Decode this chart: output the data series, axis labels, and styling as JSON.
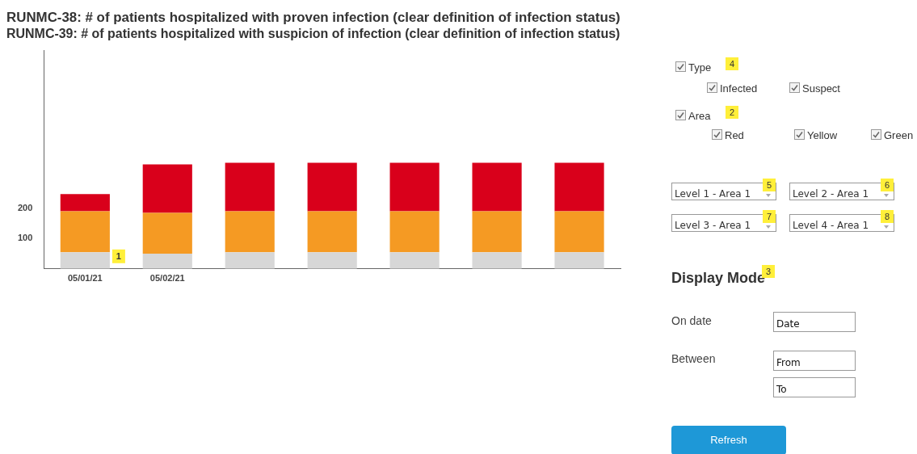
{
  "chart_data": [
    {
      "type": "bar",
      "title": "RUNMC-38: # of patients hospitalized with proven infection (clear definition of infection status)",
      "subtitle": "RUNMC-39: # of patients hospitalized with suspicion of infection (clear definition of infection status)",
      "categories": [
        "05/01/21",
        "05/02/21",
        null,
        null,
        null,
        null,
        null
      ],
      "series": [
        {
          "color": "#d7d7d7",
          "values": [
            55,
            50,
            55,
            55,
            55,
            55,
            55
          ]
        },
        {
          "color": "#f59a23",
          "values": [
            135,
            135,
            135,
            135,
            135,
            135,
            135
          ]
        },
        {
          "color": "#d9001b",
          "values": [
            57,
            160,
            160,
            160,
            160,
            160,
            160
          ]
        }
      ],
      "stacked": true,
      "ylim": [
        0,
        720
      ],
      "yticks": [
        100,
        200
      ],
      "grid": false,
      "legend": false,
      "annotations": [
        "1"
      ]
    },
    {
      "type": "other",
      "annotations": [
        "Type",
        "4",
        "Infected",
        "Suspect",
        "Area",
        "2",
        "Red",
        "Yellow",
        "Green",
        "Level 1 - Area 1",
        "5",
        "Level 2 - Area 1",
        "6",
        "Level 3 - Area 1",
        "7",
        "Level 4 - Area 1",
        "8",
        "Display Mode",
        "3",
        "On date",
        "Date",
        "Between",
        "From",
        "To",
        "Refresh"
      ]
    }
  ]
}
